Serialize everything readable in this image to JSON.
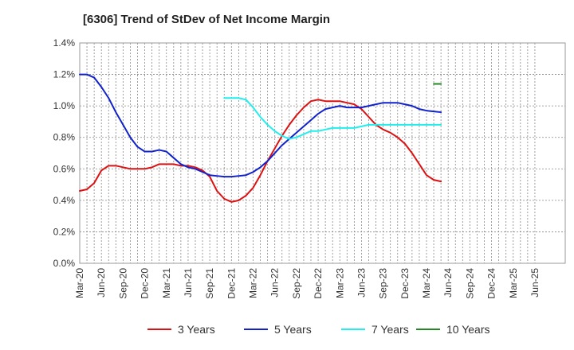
{
  "chart_data": {
    "type": "line",
    "title": "[6306]  Trend of StDev of Net Income Margin",
    "xlabel": "",
    "ylabel": "",
    "ylim": [
      0.0,
      1.4
    ],
    "yticks": [
      "0.0%",
      "0.2%",
      "0.4%",
      "0.6%",
      "0.8%",
      "1.0%",
      "1.2%",
      "1.4%"
    ],
    "xticks": [
      "Mar-20",
      "Jun-20",
      "Sep-20",
      "Dec-20",
      "Mar-21",
      "Jun-21",
      "Sep-21",
      "Dec-21",
      "Mar-22",
      "Jun-22",
      "Sep-22",
      "Dec-22",
      "Mar-23",
      "Jun-23",
      "Sep-23",
      "Dec-23",
      "Mar-24",
      "Jun-24",
      "Sep-24",
      "Dec-24",
      "Mar-25",
      "Jun-25"
    ],
    "grid": true,
    "legend_position": "bottom",
    "series": [
      {
        "name": "3 Years",
        "color": "#dd1111",
        "start_index": 0,
        "values": [
          0.46,
          0.47,
          0.51,
          0.59,
          0.62,
          0.62,
          0.61,
          0.6,
          0.6,
          0.6,
          0.61,
          0.63,
          0.63,
          0.63,
          0.62,
          0.62,
          0.61,
          0.59,
          0.55,
          0.46,
          0.41,
          0.39,
          0.4,
          0.43,
          0.48,
          0.56,
          0.65,
          0.73,
          0.81,
          0.88,
          0.94,
          0.99,
          1.03,
          1.04,
          1.03,
          1.03,
          1.03,
          1.02,
          1.01,
          0.98,
          0.93,
          0.88,
          0.85,
          0.83,
          0.8,
          0.76,
          0.7,
          0.63,
          0.56,
          0.53,
          0.52
        ]
      },
      {
        "name": "5 Years",
        "color": "#1122cc",
        "start_index": 0,
        "values": [
          1.2,
          1.2,
          1.18,
          1.12,
          1.05,
          0.96,
          0.88,
          0.8,
          0.74,
          0.71,
          0.71,
          0.72,
          0.71,
          0.67,
          0.63,
          0.61,
          0.6,
          0.58,
          0.56,
          0.555,
          0.55,
          0.55,
          0.555,
          0.56,
          0.58,
          0.61,
          0.65,
          0.7,
          0.75,
          0.79,
          0.83,
          0.87,
          0.91,
          0.95,
          0.98,
          0.99,
          1.0,
          0.99,
          0.99,
          0.99,
          1.0,
          1.01,
          1.02,
          1.02,
          1.02,
          1.01,
          1.0,
          0.98,
          0.97,
          0.965,
          0.96
        ]
      },
      {
        "name": "7 Years",
        "color": "#22eeee",
        "start_index": 20,
        "values": [
          1.05,
          1.05,
          1.05,
          1.04,
          0.99,
          0.93,
          0.88,
          0.84,
          0.81,
          0.79,
          0.8,
          0.82,
          0.84,
          0.84,
          0.85,
          0.86,
          0.86,
          0.86,
          0.86,
          0.87,
          0.88,
          0.88,
          0.88,
          0.88,
          0.88,
          0.88,
          0.88,
          0.88,
          0.88,
          0.88,
          0.88
        ]
      },
      {
        "name": "10 Years",
        "color": "#228822",
        "start_index": 49,
        "values": [
          1.14,
          1.14
        ]
      }
    ]
  }
}
